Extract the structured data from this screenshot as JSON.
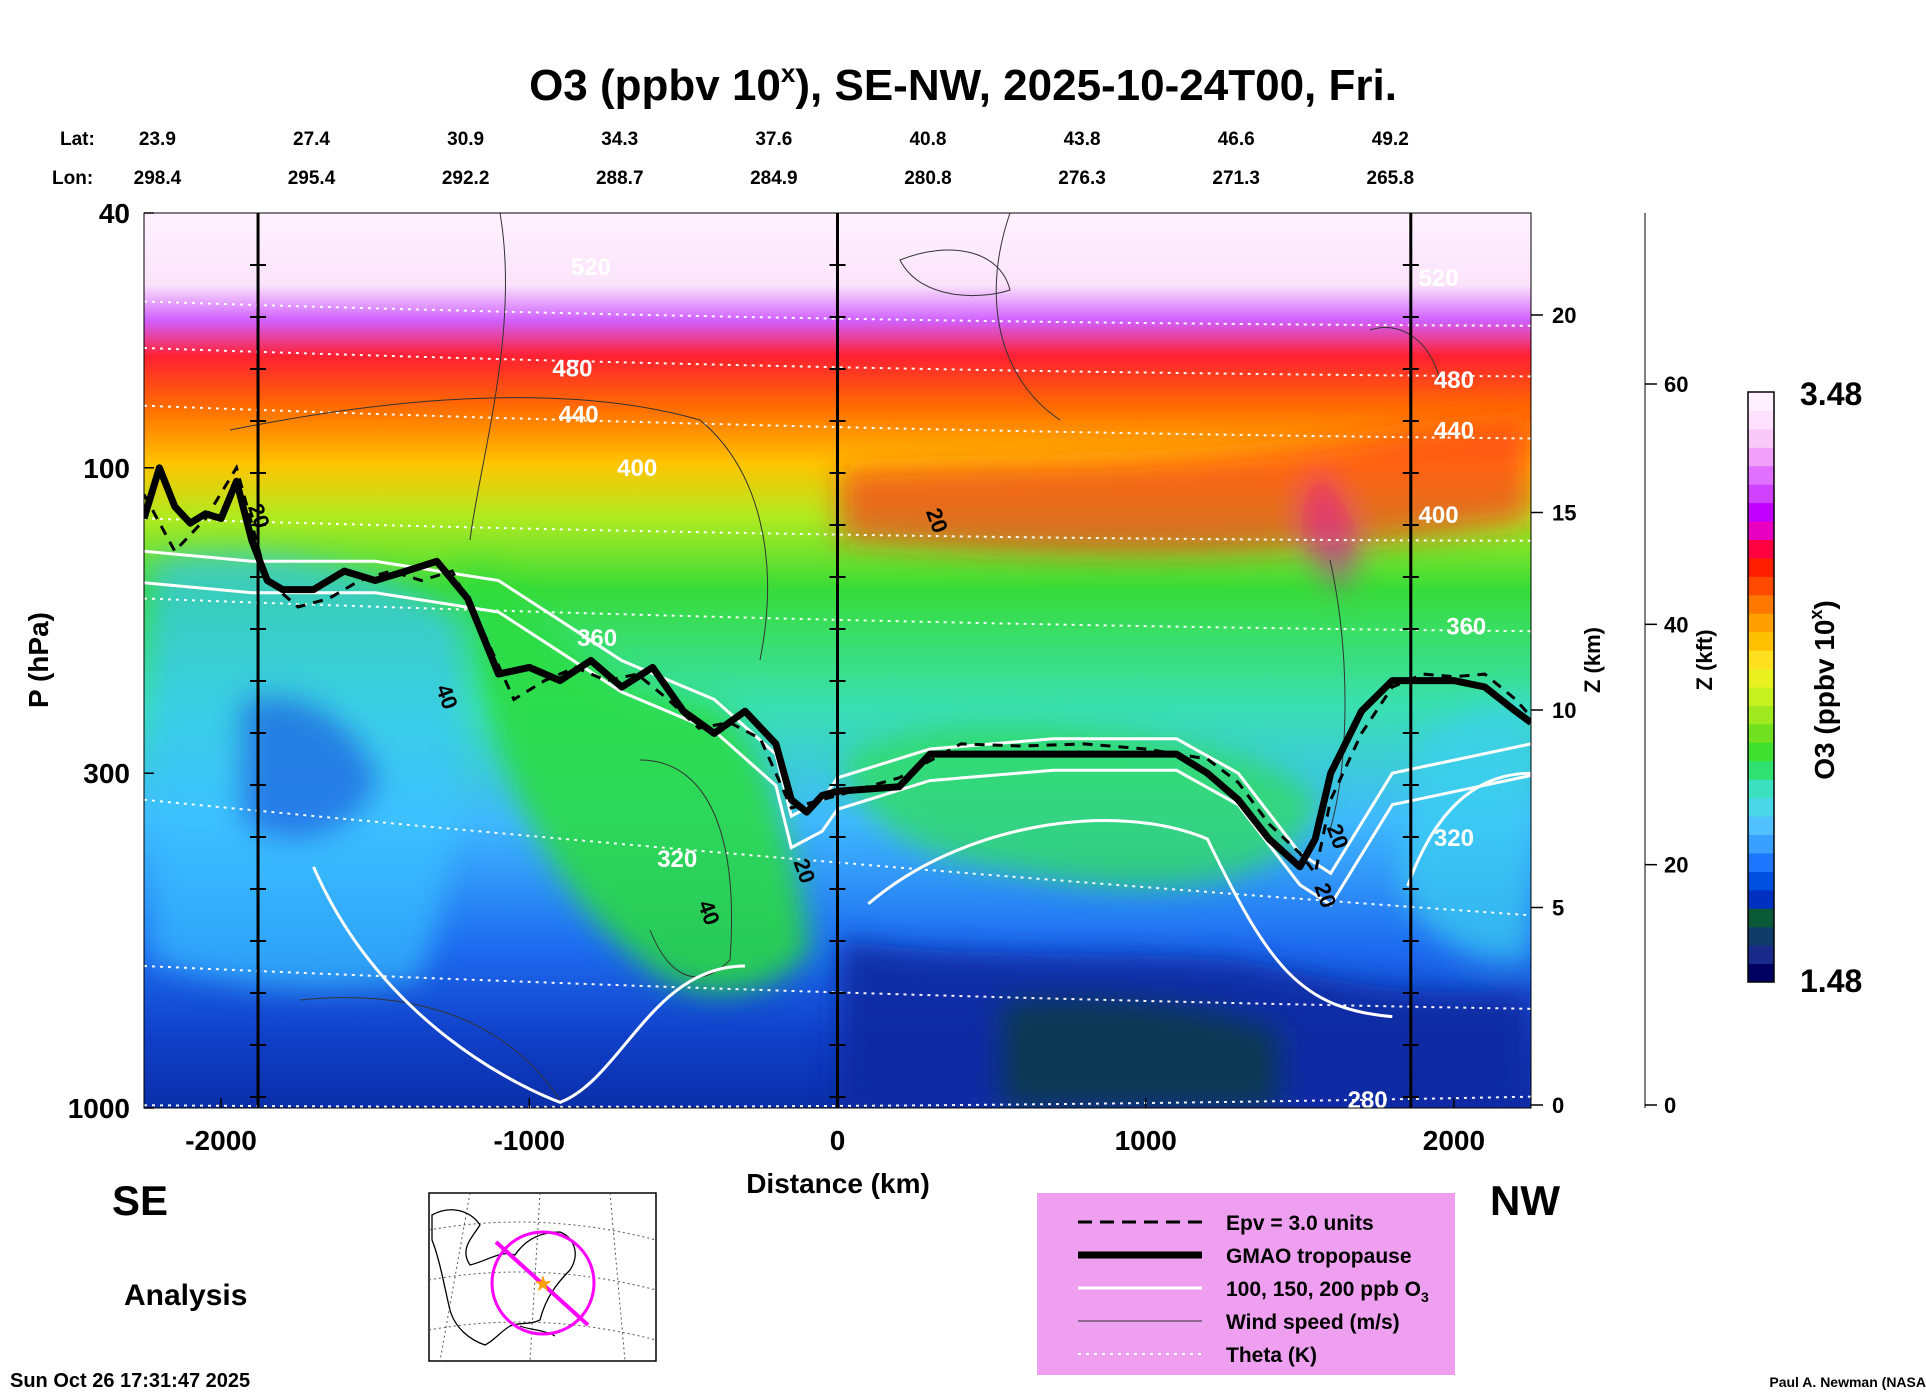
{
  "chart_data": {
    "type": "heatmap",
    "title": "O3 (ppbv 10",
    "title_sup": "x",
    "title_rest": "), SE-NW, 2025-10-24T00, Fri.",
    "xlabel": "Distance (km)",
    "ylabel": "P (hPa)",
    "y2label": "Z (km)",
    "y3label": "Z (kft)",
    "colorbar_label": "O3 (ppbv 10",
    "colorbar_sup": "x",
    "colorbar_close": ")",
    "xlim": [
      -2250,
      2250
    ],
    "ylim": [
      1000,
      40
    ],
    "x_ticks": [
      -2000,
      -1000,
      0,
      1000,
      2000
    ],
    "x_tick_labels": [
      "-2000",
      "-1000",
      "0",
      "1000",
      "2000"
    ],
    "y_ticks": [
      1000,
      300,
      100,
      40
    ],
    "y_tick_labels": [
      "1000",
      "300",
      "100",
      "40"
    ],
    "z_km_ticks": [
      0,
      5,
      10,
      15,
      20
    ],
    "z_km_labels": [
      "0",
      "5",
      "10",
      "15",
      "20"
    ],
    "z_kft_ticks": [
      0,
      20,
      40,
      60
    ],
    "z_kft_labels": [
      "0",
      "20",
      "40",
      "60"
    ],
    "colorbar_range": [
      1.48,
      3.48
    ],
    "colorbar_max_label": "3.48",
    "colorbar_min_label": "1.48",
    "lat_label": "Lat:",
    "lon_label": "Lon:",
    "stations": [
      {
        "x": -2200,
        "lat": "23.9",
        "lon": "298.4"
      },
      {
        "x": -1700,
        "lat": "27.4",
        "lon": "295.4"
      },
      {
        "x": -1200,
        "lat": "30.9",
        "lon": "292.2"
      },
      {
        "x": -700,
        "lat": "34.3",
        "lon": "288.7"
      },
      {
        "x": -200,
        "lat": "37.6",
        "lon": "284.9"
      },
      {
        "x": 300,
        "lat": "40.8",
        "lon": "280.8"
      },
      {
        "x": 800,
        "lat": "43.8",
        "lon": "276.3"
      },
      {
        "x": 1300,
        "lat": "46.6",
        "lon": "271.3"
      },
      {
        "x": 1800,
        "lat": "49.2",
        "lon": "265.8"
      }
    ],
    "section_lines_x": [
      -1880,
      0,
      1860
    ],
    "tropopause_gmao": {
      "x": [
        -2250,
        -2200,
        -2150,
        -2100,
        -2050,
        -2000,
        -1950,
        -1900,
        -1850,
        -1800,
        -1700,
        -1600,
        -1500,
        -1400,
        -1300,
        -1200,
        -1100,
        -1000,
        -900,
        -800,
        -700,
        -600,
        -500,
        -400,
        -300,
        -200,
        -150,
        -100,
        -50,
        0,
        200,
        300,
        500,
        700,
        900,
        1100,
        1200,
        1300,
        1400,
        1500,
        1550,
        1600,
        1700,
        1800,
        1900,
        2000,
        2100,
        2200,
        2250
      ],
      "p": [
        120,
        100,
        115,
        122,
        118,
        120,
        105,
        130,
        150,
        155,
        155,
        145,
        150,
        145,
        140,
        160,
        210,
        205,
        215,
        200,
        220,
        205,
        240,
        260,
        240,
        270,
        330,
        345,
        325,
        320,
        315,
        280,
        280,
        280,
        280,
        280,
        300,
        330,
        380,
        420,
        380,
        300,
        240,
        215,
        215,
        215,
        220,
        240,
        250
      ]
    },
    "epv_3_units": {
      "x": [
        -2250,
        -2150,
        -2050,
        -1950,
        -1850,
        -1750,
        -1650,
        -1550,
        -1450,
        -1350,
        -1250,
        -1150,
        -1050,
        -950,
        -850,
        -750,
        -650,
        -550,
        -450,
        -350,
        -250,
        -150,
        -50,
        0,
        200,
        400,
        600,
        800,
        1000,
        1200,
        1300,
        1400,
        1500,
        1550,
        1600,
        1700,
        1800,
        1900,
        2000,
        2100,
        2200,
        2250
      ],
      "p": [
        110,
        135,
        120,
        100,
        150,
        165,
        160,
        150,
        145,
        150,
        145,
        180,
        230,
        215,
        205,
        215,
        210,
        230,
        255,
        250,
        265,
        340,
        330,
        325,
        305,
        270,
        272,
        270,
        275,
        285,
        310,
        360,
        400,
        430,
        330,
        260,
        220,
        210,
        212,
        210,
        230,
        245
      ]
    },
    "o3_100ppb_contour_x": [
      -2250,
      -1900,
      -1500,
      -1100,
      -700,
      -400,
      -200,
      -150,
      -50,
      0,
      300,
      700,
      1100,
      1300,
      1500,
      1600,
      1800,
      2250
    ],
    "o3_100ppb_contour_p": [
      135,
      140,
      140,
      150,
      200,
      230,
      280,
      350,
      330,
      305,
      275,
      265,
      265,
      300,
      400,
      430,
      300,
      270
    ],
    "theta_labels": [
      {
        "x": -800,
        "p": 50,
        "text": "520"
      },
      {
        "x": -860,
        "p": 72,
        "text": "480"
      },
      {
        "x": -840,
        "p": 85,
        "text": "440"
      },
      {
        "x": -650,
        "p": 103,
        "text": "400"
      },
      {
        "x": -780,
        "p": 190,
        "text": "360"
      },
      {
        "x": -520,
        "p": 420,
        "text": "320"
      },
      {
        "x": 1720,
        "p": 1000,
        "text": "280"
      },
      {
        "x": 2000,
        "p": 90,
        "text": "440"
      },
      {
        "x": 1950,
        "p": 122,
        "text": "400"
      },
      {
        "x": 2040,
        "p": 182,
        "text": "360"
      },
      {
        "x": 2000,
        "p": 390,
        "text": "320"
      },
      {
        "x": 1950,
        "p": 52,
        "text": "520"
      },
      {
        "x": 2000,
        "p": 75,
        "text": "480"
      }
    ],
    "wind_labels": [
      {
        "x": -1900,
        "p": 120,
        "text": "20"
      },
      {
        "x": -1290,
        "p": 230,
        "text": "40"
      },
      {
        "x": -440,
        "p": 500,
        "text": "40"
      },
      {
        "x": -130,
        "p": 430,
        "text": "20"
      },
      {
        "x": 300,
        "p": 122,
        "text": "20"
      },
      {
        "x": 1560,
        "p": 470,
        "text": "20"
      },
      {
        "x": 1600,
        "p": 380,
        "text": "20"
      }
    ],
    "theta_isolines_p_at_edges": [
      {
        "left": 990,
        "right": 960
      },
      {
        "left": 600,
        "right": 700
      },
      {
        "left": 330,
        "right": 500
      },
      {
        "left": 160,
        "right": 180
      },
      {
        "left": 120,
        "right": 130
      },
      {
        "left": 80,
        "right": 90
      },
      {
        "left": 65,
        "right": 72
      },
      {
        "left": 55,
        "right": 60
      }
    ]
  },
  "labels": {
    "se": "SE",
    "nw": "NW",
    "analysis": "Analysis",
    "timestamp": "Sun Oct 26 17:31:47 2025",
    "credit": "Paul A. Newman (NASA"
  },
  "legend": {
    "bg_color": "#ee9ff0",
    "items": [
      {
        "label": "Epv = 3.0 units",
        "style": "dashed"
      },
      {
        "label": "GMAO tropopause",
        "style": "thick"
      },
      {
        "label": "100, 150, 200 ppb O",
        "sub": "3",
        "style": "white"
      },
      {
        "label": "Wind speed (m/s)",
        "style": "thin"
      },
      {
        "label": "Theta (K)",
        "style": "dotted"
      }
    ]
  },
  "colors": {
    "colorbar": [
      "#000060",
      "#1a2a8a",
      "#103c6a",
      "#0a5a3a",
      "#0030c0",
      "#0050e0",
      "#1e78ff",
      "#3aa0ff",
      "#50c0ff",
      "#4ad8e8",
      "#3ae0c0",
      "#30e070",
      "#40e030",
      "#70e020",
      "#a0e820",
      "#c8f020",
      "#e8f020",
      "#ffe020",
      "#ffc000",
      "#ffa000",
      "#ff7800",
      "#ff4a00",
      "#ff1e00",
      "#ff0040",
      "#e800c0",
      "#c000ff",
      "#d040ff",
      "#e070ff",
      "#f0a0f8",
      "#f8c8f8",
      "#fce0fc",
      "#fff0ff"
    ],
    "map_marker": "#ff00ff",
    "map_star": "#ffa000"
  }
}
